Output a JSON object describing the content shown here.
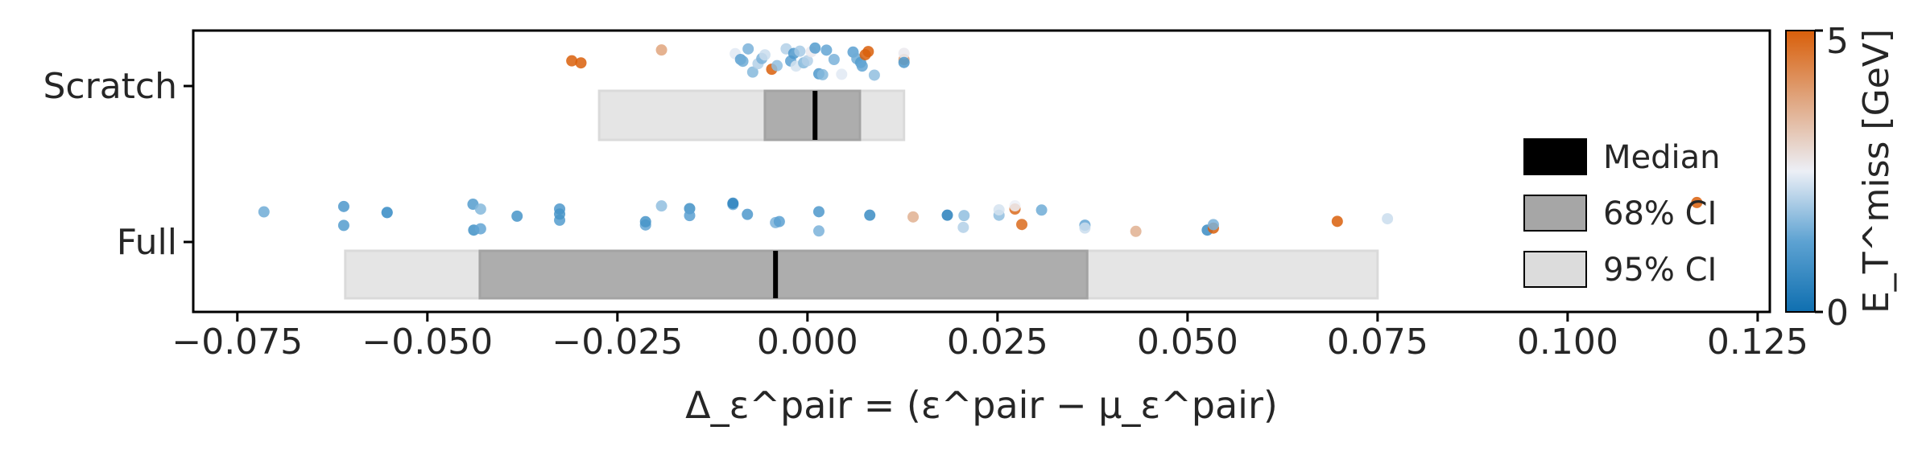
{
  "chart_data": {
    "type": "scatter",
    "xlabel": "Δ_ε^pair = (ε^pair − μ_ε^pair)",
    "xlim": [
      -0.0808,
      0.1266
    ],
    "x_ticks": [
      -0.075,
      -0.05,
      -0.025,
      0.0,
      0.025,
      0.05,
      0.075,
      0.1,
      0.125
    ],
    "x_tick_labels": [
      "−0.075",
      "−0.050",
      "−0.025",
      "0.000",
      "0.025",
      "0.050",
      "0.075",
      "0.100",
      "0.125"
    ],
    "categories": [
      "Scratch",
      "Full"
    ],
    "grid": false,
    "legend": {
      "position": "right",
      "entries": [
        {
          "label": "Median",
          "color": "#000000"
        },
        {
          "label": "68% CI",
          "color": "#a6a6a6"
        },
        {
          "label": "95% CI",
          "color": "#dcdcdc"
        }
      ]
    },
    "colorbar": {
      "label": "E_T^miss [GeV]",
      "range": [
        0,
        5
      ],
      "tick_labels": [
        "0",
        "5"
      ],
      "colors": [
        "#0f6fb0",
        "#5da2d2",
        "#eceff6",
        "#e0a782",
        "#d95f0a"
      ]
    },
    "intervals": [
      {
        "category": "Scratch",
        "median": 0.001,
        "ci68": [
          -0.0056,
          0.0069
        ],
        "ci95": [
          -0.0274,
          0.0127
        ]
      },
      {
        "category": "Full",
        "median": -0.0042,
        "ci68": [
          -0.0431,
          0.0368
        ],
        "ci95": [
          -0.0608,
          0.075
        ]
      }
    ],
    "series": [
      {
        "category": "Scratch",
        "points": [
          [
            -0.031,
            5
          ],
          [
            -0.0298,
            5
          ],
          [
            -0.0192,
            3.8
          ],
          [
            -0.0095,
            2.4
          ],
          [
            -0.0088,
            1.2
          ],
          [
            -0.0085,
            1.4
          ],
          [
            -0.0078,
            1.5
          ],
          [
            -0.0072,
            1.6
          ],
          [
            -0.0065,
            2.0
          ],
          [
            -0.006,
            1.5
          ],
          [
            -0.0056,
            2.2
          ],
          [
            -0.0047,
            5
          ],
          [
            -0.004,
            1.7
          ],
          [
            -0.0028,
            2.0
          ],
          [
            -0.0022,
            1.2
          ],
          [
            -0.0018,
            1.0
          ],
          [
            -0.0015,
            2.3
          ],
          [
            -0.001,
            1.9
          ],
          [
            -0.0005,
            1.6
          ],
          [
            0.0,
            2.0
          ],
          [
            0.0005,
            2.6
          ],
          [
            0.001,
            1.1
          ],
          [
            0.0015,
            1.0
          ],
          [
            0.002,
            1.6
          ],
          [
            0.0025,
            1.3
          ],
          [
            0.0035,
            1.5
          ],
          [
            0.0045,
            2.4
          ],
          [
            0.006,
            1.2
          ],
          [
            0.0065,
            1.4
          ],
          [
            0.007,
            1.1
          ],
          [
            0.0072,
            1.3
          ],
          [
            0.0076,
            5
          ],
          [
            0.008,
            5
          ],
          [
            0.0088,
            1.7
          ],
          [
            0.0127,
            3.8
          ],
          [
            0.0127,
            2.6
          ],
          [
            0.0127,
            1.0
          ]
        ]
      },
      {
        "category": "Full",
        "points": [
          [
            -0.0715,
            1.4
          ],
          [
            -0.061,
            1.0
          ],
          [
            -0.061,
            1.1
          ],
          [
            -0.0553,
            1.1
          ],
          [
            -0.0553,
            1.0
          ],
          [
            -0.044,
            1.1
          ],
          [
            -0.0439,
            0.8
          ],
          [
            -0.043,
            1.6
          ],
          [
            -0.043,
            1.3
          ],
          [
            -0.0382,
            0.9
          ],
          [
            -0.0326,
            1.0
          ],
          [
            -0.0326,
            1.1
          ],
          [
            -0.0326,
            0.9
          ],
          [
            -0.0213,
            1.3
          ],
          [
            -0.0213,
            0.9
          ],
          [
            -0.0192,
            1.7
          ],
          [
            -0.0155,
            0.8
          ],
          [
            -0.0155,
            1.2
          ],
          [
            -0.0098,
            1.4
          ],
          [
            -0.0098,
            0.5
          ],
          [
            -0.0079,
            1.0
          ],
          [
            -0.0042,
            1.5
          ],
          [
            -0.0037,
            1.2
          ],
          [
            0.0015,
            1.5
          ],
          [
            0.0015,
            1.0
          ],
          [
            0.0082,
            0.7
          ],
          [
            0.0139,
            3.6
          ],
          [
            0.0184,
            0.4
          ],
          [
            0.0205,
            2.0
          ],
          [
            0.0206,
            1.7
          ],
          [
            0.0252,
            1.7
          ],
          [
            0.0252,
            2.3
          ],
          [
            0.0273,
            4.8
          ],
          [
            0.0282,
            4.8
          ],
          [
            0.0273,
            2.5
          ],
          [
            0.0308,
            1.4
          ],
          [
            0.0365,
            1.3
          ],
          [
            0.0365,
            2.2
          ],
          [
            0.0432,
            3.6
          ],
          [
            0.0526,
            0.7
          ],
          [
            0.0534,
            5
          ],
          [
            0.0534,
            1.5
          ],
          [
            0.0697,
            5
          ],
          [
            0.0763,
            2.2
          ],
          [
            0.117,
            5
          ]
        ]
      }
    ]
  }
}
